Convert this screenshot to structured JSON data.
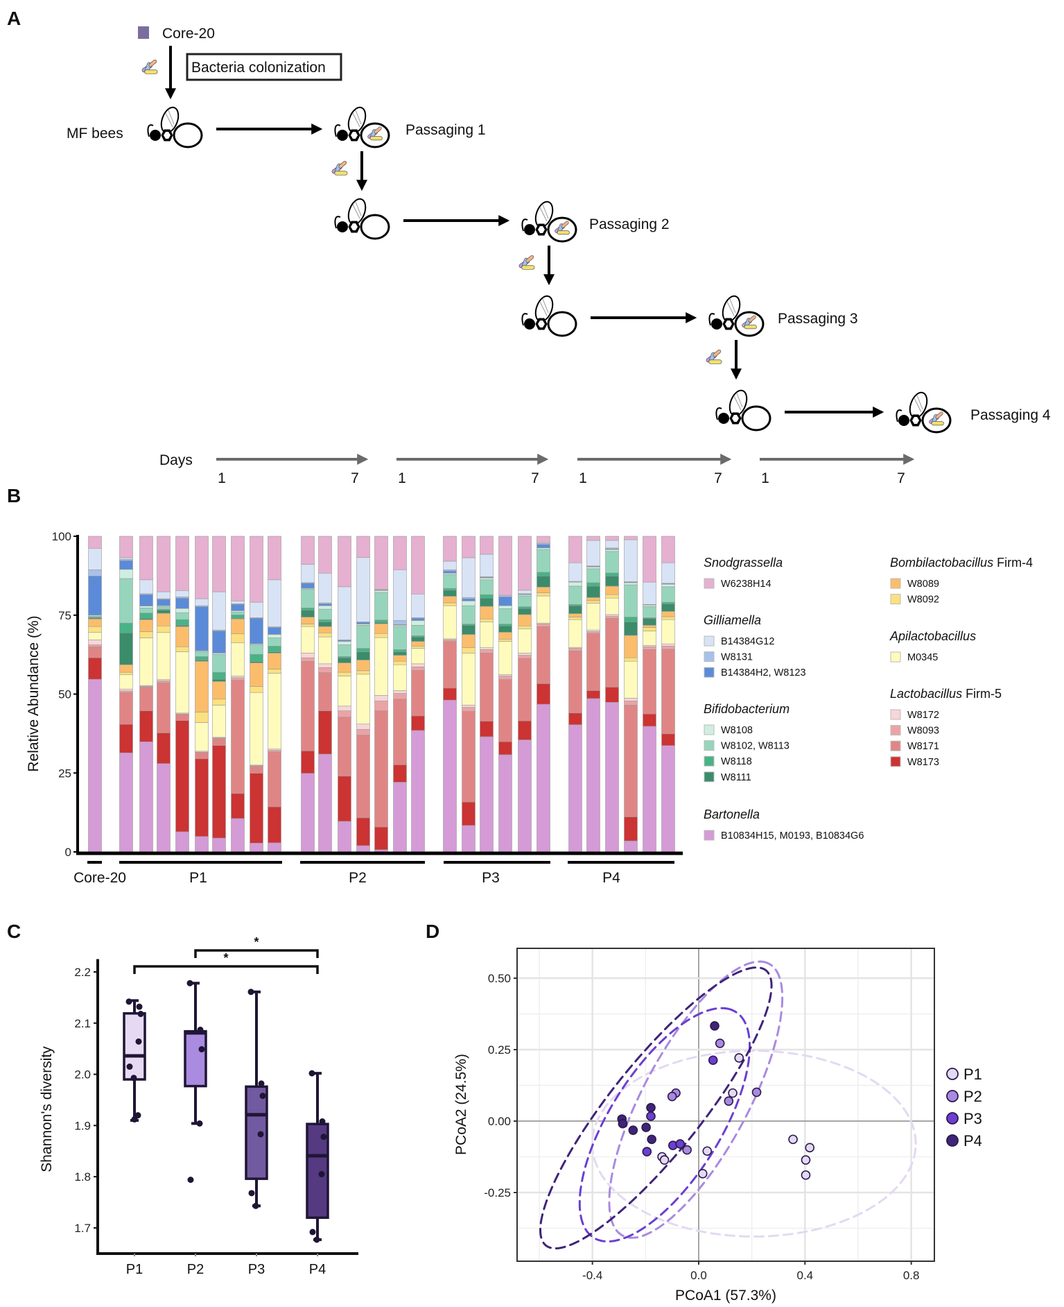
{
  "panel_labels": {
    "a": "A",
    "b": "B",
    "c": "C",
    "d": "D"
  },
  "panel_a": {
    "inoculum_label": "Core-20",
    "inoculum_color": "#7b6e9e",
    "colonization_label": "Bacteria colonization",
    "start_label": "MF bees",
    "passages": [
      "Passaging 1",
      "Passaging 2",
      "Passaging 3",
      "Passaging 4"
    ],
    "days_label": "Days",
    "day_start": "1",
    "day_end": "7",
    "icons": [
      "bee-icon",
      "bacteria-icon"
    ]
  },
  "chart_data": [
    {
      "panel": "B",
      "type": "bar",
      "stacked": true,
      "ylabel": "Relative Abundance (%)",
      "ylim": [
        0,
        100
      ],
      "yticks": [
        "0",
        "25",
        "50",
        "75",
        "100"
      ],
      "groups": [
        {
          "label": "Core-20",
          "count": 1
        },
        {
          "label": "P1",
          "count": 9
        },
        {
          "label": "P2",
          "count": 7
        },
        {
          "label": "P3",
          "count": 6
        },
        {
          "label": "P4",
          "count": 6
        }
      ],
      "stack_order": [
        "B10834H15, M0193, B10834G6",
        "W8173",
        "W8171",
        "W8093",
        "W8172",
        "M0345",
        "W8092",
        "W8089",
        "W8111",
        "W8118",
        "W8102, W8113",
        "W8108",
        "B14384H2, W8123",
        "W8131",
        "B14384G12",
        "W6238H14"
      ],
      "colors": {
        "B10834H15, M0193, B10834G6": "#d59bd6",
        "W8173": "#cc3333",
        "W8171": "#e08585",
        "W8093": "#eba3a5",
        "W8172": "#f7d6d8",
        "M0345": "#fffbbd",
        "W8092": "#fde07f",
        "W8089": "#fbbd6b",
        "W8111": "#3b8c6a",
        "W8118": "#48b386",
        "W8102, W8113": "#96d5bc",
        "W8108": "#cfeee0",
        "B14384H2, W8123": "#5b8bd8",
        "W8131": "#a8c1ea",
        "B14384G12": "#d8e3f5",
        "W6238H14": "#e6b0d0"
      },
      "samples": [
        [
          54.7,
          6.8,
          3.5,
          0.6,
          1.6,
          2.4,
          1.8,
          2.4,
          0.3,
          0.3,
          0.3,
          0.3,
          12.4,
          2,
          6.8,
          3.8
        ],
        [
          31.4,
          9,
          10.1,
          0.5,
          0.6,
          4.6,
          0.7,
          2.4,
          10.1,
          3.1,
          14.1,
          2.9,
          2.8,
          0.4,
          0.5,
          6.8
        ],
        [
          34.9,
          9.8,
          7.5,
          0.3,
          0.2,
          15.1,
          2,
          3.8,
          0.4,
          1.7,
          1.6,
          0.6,
          3.6,
          0.3,
          4.4,
          13.8
        ],
        [
          28,
          9.7,
          15.9,
          0.6,
          0.4,
          14.9,
          2.1,
          4,
          1,
          0.3,
          0.8,
          0.3,
          2,
          0.2,
          2.2,
          17.6
        ],
        [
          6.4,
          35.2,
          2,
          0.1,
          0.3,
          19.4,
          1.6,
          6.4,
          0.4,
          1.8,
          2.2,
          1.3,
          3.3,
          0.4,
          2,
          17.2
        ],
        [
          4.9,
          24.6,
          2,
          0.1,
          0.3,
          9.1,
          3.3,
          16.1,
          0.4,
          1.1,
          1.5,
          0.3,
          14,
          0.3,
          2.2,
          19.8
        ],
        [
          4.4,
          29.3,
          2.2,
          0.2,
          0.2,
          10.2,
          1.9,
          5.6,
          0.7,
          2.2,
          5.7,
          0.4,
          7,
          0.3,
          12.1,
          17.6
        ],
        [
          10.6,
          7.9,
          35.9,
          0.8,
          0.5,
          10.6,
          2.8,
          4.7,
          0.2,
          1.1,
          0.9,
          0.4,
          2,
          0.2,
          0.9,
          20.5
        ],
        [
          2.8,
          22.1,
          2.2,
          0.2,
          0.2,
          23,
          1.9,
          7.5,
          0.4,
          2.3,
          3,
          0.3,
          8.1,
          0.2,
          4.9,
          20.9
        ],
        [
          2.9,
          11.4,
          17.4,
          0.5,
          0.4,
          24,
          1.3,
          5.1,
          0.4,
          1.8,
          2.6,
          1.1,
          2.2,
          0.2,
          14.9,
          13.8
        ],
        [
          24.9,
          7.1,
          28.4,
          1.1,
          1.5,
          8.4,
          0.8,
          2.2,
          2.2,
          0.7,
          5.9,
          0.3,
          1.6,
          0.2,
          5.8,
          8.9
        ],
        [
          31,
          13.7,
          12.1,
          1.6,
          1.2,
          8.5,
          1.3,
          2,
          1.5,
          0.7,
          3.3,
          1.1,
          0.6,
          0.3,
          9.4,
          11.7
        ],
        [
          9.7,
          14.3,
          18.7,
          2,
          1.5,
          9.5,
          1.2,
          3,
          1.6,
          0.4,
          3.7,
          1.1,
          0.3,
          0.2,
          16.8,
          16
        ],
        [
          2,
          8.8,
          26.2,
          1.8,
          1.7,
          15.8,
          1.1,
          3.4,
          2.6,
          1.1,
          7.3,
          0.4,
          0.5,
          0.2,
          20.4,
          6.7
        ],
        [
          0.7,
          7.2,
          36.8,
          3.1,
          1.8,
          18.3,
          1.3,
          3.1,
          0.4,
          0.8,
          8.7,
          0.6,
          0.1,
          0.1,
          0.2,
          16.8
        ],
        [
          22.1,
          5.5,
          20.8,
          1.8,
          0.9,
          8.2,
          1.1,
          1.9,
          1.1,
          0.7,
          7.3,
          0.4,
          0.2,
          1.3,
          16.1,
          10.6
        ],
        [
          38.5,
          4.6,
          14.4,
          1.1,
          1,
          4.9,
          0.7,
          1.5,
          1.4,
          0.4,
          3.3,
          1.5,
          0.7,
          0.2,
          7.5,
          18.3
        ],
        [
          48.1,
          3.8,
          14.8,
          0.5,
          0.3,
          10.5,
          0.9,
          2.1,
          1.9,
          0.6,
          4.4,
          0.4,
          0.7,
          0.4,
          2.7,
          7.9
        ],
        [
          8.4,
          7.4,
          28.7,
          1.3,
          0.7,
          16.5,
          1.7,
          4.2,
          2.9,
          0.4,
          5.8,
          1.5,
          0.7,
          0.4,
          12.6,
          6.8
        ],
        [
          36.5,
          4.9,
          21.6,
          1.1,
          0.6,
          8.2,
          0.9,
          4,
          2.6,
          1.1,
          4.7,
          0.6,
          0.2,
          0.2,
          7.1,
          5.7
        ],
        [
          30.8,
          4.1,
          19.7,
          1.1,
          0.5,
          10.5,
          0.7,
          2.2,
          2,
          0.6,
          4.9,
          0.9,
          2.8,
          0.5,
          0,
          18.7
        ],
        [
          35.5,
          6,
          19.8,
          1,
          0.7,
          7.7,
          0.9,
          3.6,
          1.9,
          0.6,
          3.4,
          0.4,
          0.2,
          0.1,
          1.1,
          17.1
        ],
        [
          46.8,
          6.5,
          18.1,
          0.8,
          0.3,
          8.6,
          1,
          1.8,
          3.5,
          1.2,
          7.2,
          0.5,
          1.1,
          0.3,
          0.3,
          2
        ],
        [
          40.3,
          3.7,
          19.7,
          0.8,
          0.3,
          8.8,
          0.8,
          1.1,
          2.5,
          0.4,
          5.8,
          1.3,
          0.1,
          0.1,
          5.9,
          8.4
        ],
        [
          48.6,
          2.5,
          18.1,
          0.6,
          0.5,
          8.5,
          0.8,
          1,
          3.6,
          1.1,
          4.4,
          0.6,
          0.2,
          0.1,
          8.1,
          1.3
        ],
        [
          47.4,
          4.8,
          21.8,
          0.7,
          0.5,
          5.2,
          1.1,
          2.7,
          3.2,
          1,
          6.8,
          0.6,
          0.2,
          0.3,
          2.4,
          1.3
        ],
        [
          3.5,
          7.6,
          35.4,
          1.3,
          0.9,
          11.7,
          1.1,
          7.1,
          4.3,
          1.5,
          10.2,
          0.7,
          0.2,
          0.1,
          13.3,
          1.1
        ],
        [
          39.8,
          3.9,
          20.4,
          0.9,
          0.4,
          4.6,
          1.1,
          0.7,
          2.2,
          0.2,
          3.5,
          0.5,
          0.1,
          0.1,
          7.1,
          14.5
        ],
        [
          33.7,
          3.7,
          26.8,
          1,
          0.7,
          7.7,
          0.9,
          1.7,
          2.4,
          0.5,
          4.9,
          0.8,
          0.2,
          0.1,
          6.5,
          8.4
        ]
      ],
      "legend": [
        {
          "genus": "Snodgrassella",
          "suffix": "",
          "items": [
            "W6238H14"
          ]
        },
        {
          "genus": "Gilliamella",
          "suffix": "",
          "items": [
            "B14384G12",
            "W8131",
            "B14384H2, W8123"
          ]
        },
        {
          "genus": "Bifidobacterium",
          "suffix": "",
          "items": [
            "W8108",
            "W8102, W8113",
            "W8118",
            "W8111"
          ]
        },
        {
          "genus": "Bartonella",
          "suffix": "",
          "items": [
            "B10834H15, M0193, B10834G6"
          ]
        },
        {
          "genus": "Bombilactobacillus",
          "suffix": " Firm-4",
          "items": [
            "W8089",
            "W8092"
          ]
        },
        {
          "genus": "Apilactobacillus",
          "suffix": "",
          "items": [
            "M0345"
          ]
        },
        {
          "genus": "Lactobacillus",
          "suffix": " Firm-5",
          "items": [
            "W8172",
            "W8093",
            "W8171",
            "W8173"
          ]
        }
      ],
      "legend_placement": "right"
    },
    {
      "panel": "C",
      "type": "box",
      "ylabel": "Shannon's diversity",
      "ylim": [
        1.65,
        2.225
      ],
      "yticks": [
        "1.7",
        "1.8",
        "1.9",
        "2.0",
        "2.1",
        "2.2"
      ],
      "categories": [
        "P1",
        "P2",
        "P3",
        "P4"
      ],
      "colors": [
        "#e6daf3",
        "#a98be0",
        "#725aa0",
        "#553a82"
      ],
      "boxes": [
        {
          "whisker_low": 1.91,
          "q1": 1.99,
          "median": 2.036,
          "q3": 2.119,
          "whisker_high": 2.144,
          "points": [
            2.142,
            2.132,
            2.118,
            2.064,
            2.015,
            1.993,
            1.92,
            1.912
          ]
        },
        {
          "whisker_low": 1.904,
          "q1": 1.977,
          "median": 2.081,
          "q3": 2.084,
          "whisker_high": 2.178,
          "points": [
            2.178,
            2.087,
            2.049,
            1.904,
            1.794
          ]
        },
        {
          "whisker_low": 1.743,
          "q1": 1.796,
          "median": 1.921,
          "q3": 1.976,
          "whisker_high": 2.161,
          "points": [
            2.161,
            1.982,
            1.958,
            1.883,
            1.768,
            1.743
          ]
        },
        {
          "whisker_low": 1.677,
          "q1": 1.72,
          "median": 1.841,
          "q3": 1.903,
          "whisker_high": 2.002,
          "points": [
            2.002,
            1.908,
            1.878,
            1.805,
            1.692,
            1.677
          ]
        }
      ],
      "significance": [
        {
          "from": "P2",
          "to": "P4",
          "label": "*"
        },
        {
          "from": "P1",
          "to": "P4",
          "label": "*"
        }
      ]
    },
    {
      "panel": "D",
      "type": "scatter",
      "xlabel": "PCoA1 (57.3%)",
      "ylabel": "PCoA2 (24.5%)",
      "xlim": [
        -0.684,
        0.887
      ],
      "ylim": [
        -0.49,
        0.604
      ],
      "xticks": [
        "-0.4",
        "0.0",
        "0.4",
        "0.8"
      ],
      "yticks": [
        "-0.25",
        "0.00",
        "0.25",
        "0.50"
      ],
      "grid": true,
      "legend_placement": "right",
      "series": [
        {
          "name": "P1",
          "color": "#e3d9f2",
          "points": [
            [
              0.152,
              0.221
            ],
            [
              0.128,
              0.098
            ],
            [
              -0.138,
              -0.125
            ],
            [
              -0.129,
              -0.136
            ],
            [
              0.032,
              -0.105
            ],
            [
              0.015,
              -0.184
            ],
            [
              0.355,
              -0.064
            ],
            [
              0.418,
              -0.093
            ],
            [
              0.403,
              -0.136
            ],
            [
              0.403,
              -0.189
            ]
          ],
          "ellipse": {
            "center": [
              0.208,
              -0.079
            ],
            "axis1": [
              0.609,
              0
            ],
            "axis2": [
              0,
              0.325
            ]
          }
        },
        {
          "name": "P2",
          "color": "#a98ae0",
          "points": [
            [
              0.08,
              0.272
            ],
            [
              -0.086,
              0.098
            ],
            [
              -0.1,
              0.086
            ],
            [
              0.113,
              0.07
            ],
            [
              -0.044,
              -0.101
            ],
            [
              0.218,
              0.101
            ]
          ],
          "ellipse": {
            "center": [
              -0.011,
              0.075
            ],
            "axis1": [
              0.256,
              0.482
            ],
            "axis2": [
              0.2015,
              -0.036
            ]
          }
        },
        {
          "name": "P3",
          "color": "#6c3fd0",
          "points": [
            [
              0.054,
              0.213
            ],
            [
              -0.18,
              0.017
            ],
            [
              -0.195,
              -0.107
            ],
            [
              -0.097,
              -0.085
            ],
            [
              -0.07,
              -0.08
            ]
          ],
          "ellipse": {
            "center": [
              -0.128,
              -0.013
            ],
            "axis1": [
              0.238,
              0.406
            ],
            "axis2": [
              0.214,
              -0.042
            ]
          }
        },
        {
          "name": "P4",
          "color": "#3f2478",
          "points": [
            [
              0.06,
              0.333
            ],
            [
              -0.289,
              0.007
            ],
            [
              -0.286,
              -0.009
            ],
            [
              -0.247,
              -0.032
            ],
            [
              -0.198,
              -0.022
            ],
            [
              -0.177,
              -0.064
            ],
            [
              -0.18,
              0.047
            ]
          ],
          "ellipse": {
            "center": [
              -0.161,
              0.046
            ],
            "axis1": [
              0.398,
              0.489
            ],
            "axis2": [
              0.176,
              -0.049
            ]
          }
        }
      ]
    }
  ]
}
